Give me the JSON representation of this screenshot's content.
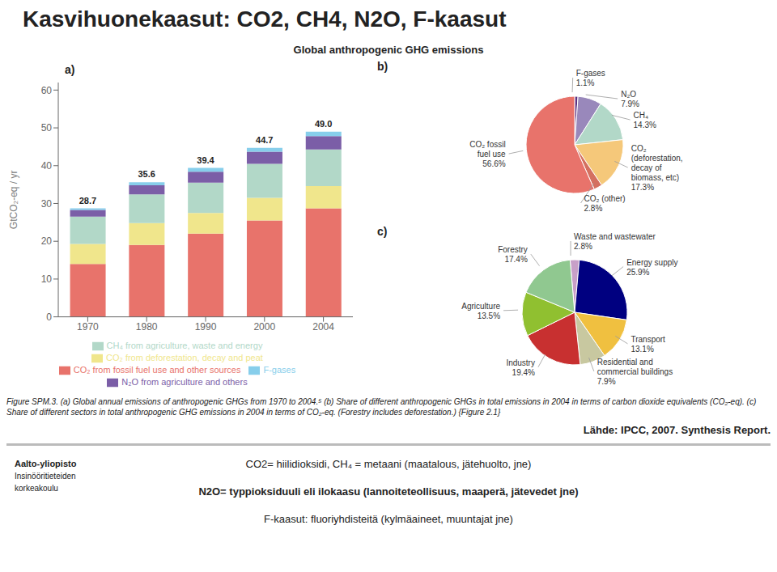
{
  "title": "Kasvihuonekaasut: CO2, CH4, N2O, F-kaasut",
  "subtitle": "Global anthropogenic GHG emissions",
  "caption": "Figure SPM.3. (a) Global annual emissions of anthropogenic GHGs from 1970 to 2004.⁵ (b) Share of different anthropogenic GHGs in total emissions in 2004 in terms of carbon dioxide equivalents (CO₂-eq). (c) Share of different sectors in total anthropogenic GHG emissions in 2004 in terms of CO₂-eq. (Forestry includes deforestation.) {Figure 2.1}",
  "source": "Lähde: IPCC, 2007. Synthesis Report.",
  "notes": [
    "CO2= hiilidioksidi, CH₄ = metaani (maatalous, jätehuolto, jne)",
    "N2O= typpioksiduuli eli ilokaasu (lannoiteteollisuus, maaperä, jätevedet jne)",
    "F-kaasut: fluoriyhdisteitä (kylmäaineet, muuntajat jne)"
  ],
  "logo_text": [
    "Aalto-yliopisto",
    "Insinööritieteiden",
    "korkeakoulu"
  ],
  "chart_data": [
    {
      "type": "bar",
      "stacked": true,
      "title": "a)",
      "categories": [
        "1970",
        "1980",
        "1990",
        "2000",
        "2004"
      ],
      "y_label": "GtCO₂-eq / yr",
      "ylim": [
        0,
        62
      ],
      "yticks": [
        0,
        10,
        20,
        30,
        40,
        50,
        60
      ],
      "grid": false,
      "legend": "bottom",
      "series": [
        {
          "name": "CO₂ from fossil fuel use and other sources",
          "color": "#e8736b",
          "values": [
            14.0,
            19.0,
            22.0,
            25.5,
            28.7
          ]
        },
        {
          "name": "CO₂ from deforestation, decay and peat",
          "color": "#f0e68c",
          "values": [
            5.3,
            5.8,
            5.5,
            6.0,
            5.9
          ]
        },
        {
          "name": "CH₄ from agriculture, waste and energy",
          "color": "#b2d8c8",
          "values": [
            7.2,
            7.6,
            8.0,
            9.0,
            9.7
          ]
        },
        {
          "name": "N₂O from agriculture and others",
          "color": "#7b5ea7",
          "values": [
            1.8,
            2.4,
            2.9,
            3.2,
            3.5
          ]
        },
        {
          "name": "F-gases",
          "color": "#87ceeb",
          "values": [
            0.4,
            0.8,
            1.0,
            1.0,
            1.2
          ]
        }
      ],
      "totals": [
        28.7,
        35.6,
        39.4,
        44.7,
        49.0
      ],
      "total_labels": [
        "28.7",
        "35.6",
        "39.4",
        "44.7",
        "49.0"
      ]
    },
    {
      "type": "pie",
      "title": "b)",
      "categories": [
        "F-gases",
        "N₂O",
        "CH₄",
        "CO₂\n(deforestation,\ndecay of\nbiomass, etc)",
        "CO₂ (other)",
        "CO₂ fossil\nfuel use"
      ],
      "values": [
        1.1,
        7.9,
        14.3,
        17.3,
        2.8,
        56.6
      ],
      "value_labels": [
        "1.1%",
        "7.9%",
        "14.3%",
        "17.3%",
        "2.8%",
        "56.6%"
      ],
      "colors": [
        "#5a3080",
        "#9988bb",
        "#b2d8c8",
        "#f5c87a",
        "#d47060",
        "#e8736b"
      ]
    },
    {
      "type": "pie",
      "title": "c)",
      "categories": [
        "Waste and wastewater",
        "Energy supply",
        "Transport",
        "Residential and\ncommercial buildings",
        "Industry",
        "Agriculture",
        "Forestry"
      ],
      "values": [
        2.8,
        25.9,
        13.1,
        7.9,
        19.4,
        13.5,
        17.4
      ],
      "value_labels": [
        "2.8%",
        "25.9%",
        "13.1%",
        "7.9%",
        "19.4%",
        "13.5%",
        "17.4%"
      ],
      "colors": [
        "#c8a0c8",
        "#000080",
        "#f0c040",
        "#c8c8a0",
        "#c83030",
        "#90c030",
        "#90c890"
      ]
    }
  ]
}
